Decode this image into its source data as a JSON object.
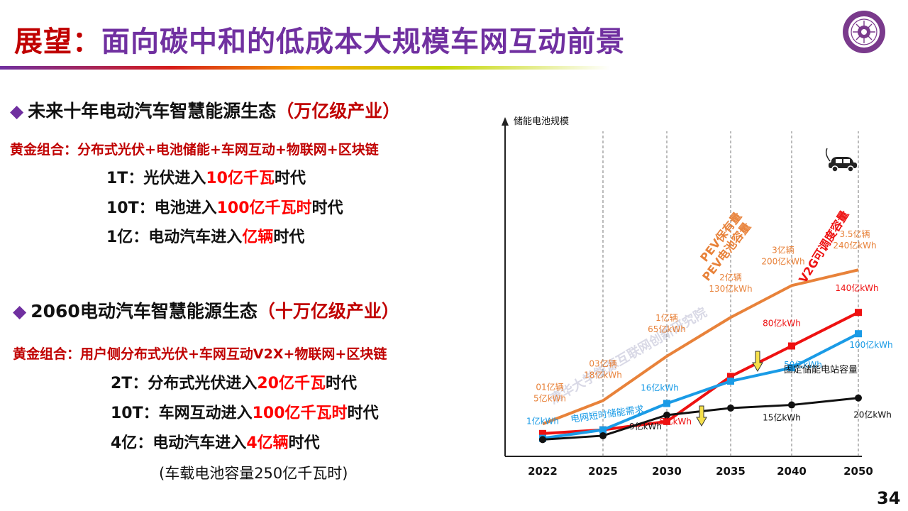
{
  "title": {
    "prefix": "展望：",
    "main": "面向碳中和的低成本大规模车网互动前景"
  },
  "page_number": "34",
  "section1": {
    "heading": "未来十年电动汽车智慧能源生态",
    "heading_paren": "（万亿级产业）",
    "combo_label": "黄金组合：",
    "combo_value": "分布式光伏+电池储能+车网互动+物联网+区块链",
    "lines": [
      {
        "pre": "1T：光伏进入",
        "hl": "10亿千瓦",
        "post": "时代"
      },
      {
        "pre": "10T：电池进入",
        "hl": "100亿千瓦时",
        "post": "时代"
      },
      {
        "pre": "1亿：电动汽车进入",
        "hl": "亿辆",
        "post": "时代"
      }
    ]
  },
  "section2": {
    "heading": "2060电动汽车智慧能源生态",
    "heading_paren": "（十万亿级产业）",
    "combo_label": "黄金组合：",
    "combo_value": "用户侧分布式光伏+车网互动V2X+物联网+区块链",
    "lines": [
      {
        "pre": "2T：分布式光伏进入",
        "hl": "20亿千瓦",
        "post": "时代"
      },
      {
        "pre": "10T：车网互动进入",
        "hl": "100亿千瓦时",
        "post": "时代"
      },
      {
        "pre": "4亿：电动汽车进入",
        "hl": "4亿辆",
        "post": "时代"
      }
    ],
    "note": "(车载电池容量250亿千瓦时)"
  },
  "chart_data": {
    "type": "line",
    "ylabel": "储能电池规模",
    "categories": [
      "2022",
      "2025",
      "2030",
      "2035",
      "2040",
      "2050"
    ],
    "colors": {
      "pev": "#e8823a",
      "v2g": "#ee1111",
      "grid_demand": "#1a9be6",
      "fixed": "#111111"
    },
    "series": [
      {
        "key": "pev",
        "name": "PEV保有量 PEV电池容量",
        "name_line1": "PEV保有量",
        "name_line2": "PEV电池容量",
        "values": [
          5,
          18,
          65,
          130,
          200,
          240
        ],
        "labels": [
          "01亿辆\n5亿kWh",
          "03亿辆\n18亿kWh",
          "1亿辆\n65亿kWh",
          "2亿辆\n130亿kWh",
          "3亿辆\n200亿kWh",
          "3.5亿辆\n240亿kWh"
        ]
      },
      {
        "key": "v2g",
        "name": "V2G可调度容量",
        "values": [
          2,
          3,
          6,
          40,
          80,
          140
        ],
        "labels": [
          "",
          "",
          "6亿kWh",
          "",
          "80亿kWh",
          "140亿kWh"
        ]
      },
      {
        "key": "grid_demand",
        "name": "电网短时储能需求",
        "values": [
          1,
          3,
          16,
          35,
          50,
          100
        ],
        "labels": [
          "1亿kWh",
          "",
          "16亿kWh",
          "",
          "50亿kWh",
          "100亿kWh"
        ]
      },
      {
        "key": "fixed",
        "name": "固定储能电站容量",
        "values": [
          0.8,
          1.5,
          9,
          13,
          15,
          20
        ],
        "labels": [
          "",
          "",
          "9亿kWh",
          "",
          "15亿kWh",
          "20亿kWh"
        ]
      }
    ],
    "grid": false,
    "watermark": "清华大学能源互联网创新研究院"
  }
}
